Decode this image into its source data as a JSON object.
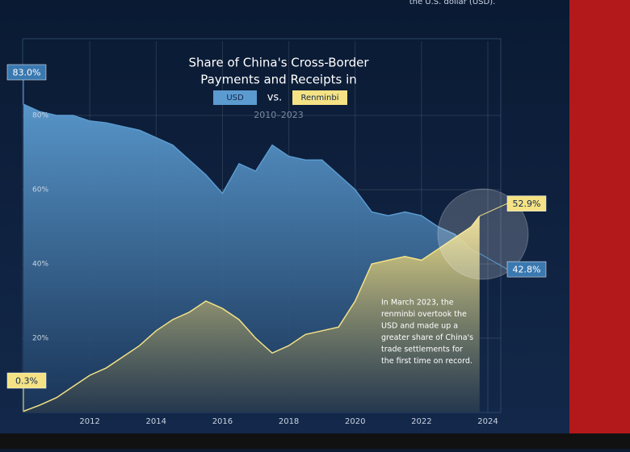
{
  "header_text": "the U.S. dollar (USD).",
  "chart_data": {
    "type": "area",
    "title": [
      "Share of China's Cross-Border",
      "Payments and Receipts in"
    ],
    "legend_joiner": "vs.",
    "subtitle": "2010–2023",
    "x": [
      2010,
      2010.5,
      2011,
      2011.5,
      2012,
      2012.5,
      2013,
      2013.5,
      2014,
      2014.5,
      2015,
      2015.5,
      2016,
      2016.5,
      2017,
      2017.5,
      2018,
      2018.5,
      2019,
      2019.5,
      2020,
      2020.5,
      2021,
      2021.5,
      2022,
      2022.5,
      2023,
      2023.5,
      2023.75
    ],
    "series": [
      {
        "name": "USD",
        "color": "#5b9bd0",
        "values": [
          83,
          81,
          80,
          80,
          78.5,
          78,
          77,
          76,
          74,
          72,
          68,
          64,
          59,
          67,
          65,
          72,
          69,
          68,
          68,
          64,
          60,
          54,
          53,
          54,
          53,
          50,
          48,
          44,
          42.8
        ],
        "value_labels": [
          "83.0%",
          null,
          null,
          null,
          null,
          null,
          null,
          null,
          null,
          null,
          null,
          null,
          null,
          null,
          null,
          null,
          null,
          null,
          null,
          null,
          null,
          null,
          null,
          null,
          null,
          null,
          null,
          null,
          "42.8%"
        ]
      },
      {
        "name": "Renminbi",
        "color": "#f4e285",
        "values": [
          0.3,
          2,
          4,
          7,
          10,
          12,
          15,
          18,
          22,
          25,
          27,
          30,
          28,
          25,
          20,
          16,
          18,
          21,
          22,
          23,
          30,
          40,
          41,
          42,
          41,
          44,
          47,
          50,
          52.9
        ],
        "value_labels": [
          "0.3%",
          null,
          null,
          null,
          null,
          null,
          null,
          null,
          null,
          null,
          null,
          null,
          null,
          null,
          null,
          null,
          null,
          null,
          null,
          null,
          null,
          null,
          null,
          null,
          null,
          null,
          null,
          null,
          "52.9%"
        ]
      }
    ],
    "xlim": [
      2010,
      2024
    ],
    "xticks": [
      2012,
      2014,
      2016,
      2018,
      2020,
      2022,
      2024
    ],
    "ylim": [
      0,
      100
    ],
    "yticks": [
      {
        "value": 20,
        "label": "20%"
      },
      {
        "value": 40,
        "label": "40%"
      },
      {
        "value": 60,
        "label": "60%"
      },
      {
        "value": 80,
        "label": "80%"
      }
    ],
    "grid": true,
    "annotation": [
      "In March 2023, the",
      "renminbi overtook the",
      "USD and made up a",
      "greater share of China's",
      "trade settlements for",
      "the first time on record."
    ]
  }
}
